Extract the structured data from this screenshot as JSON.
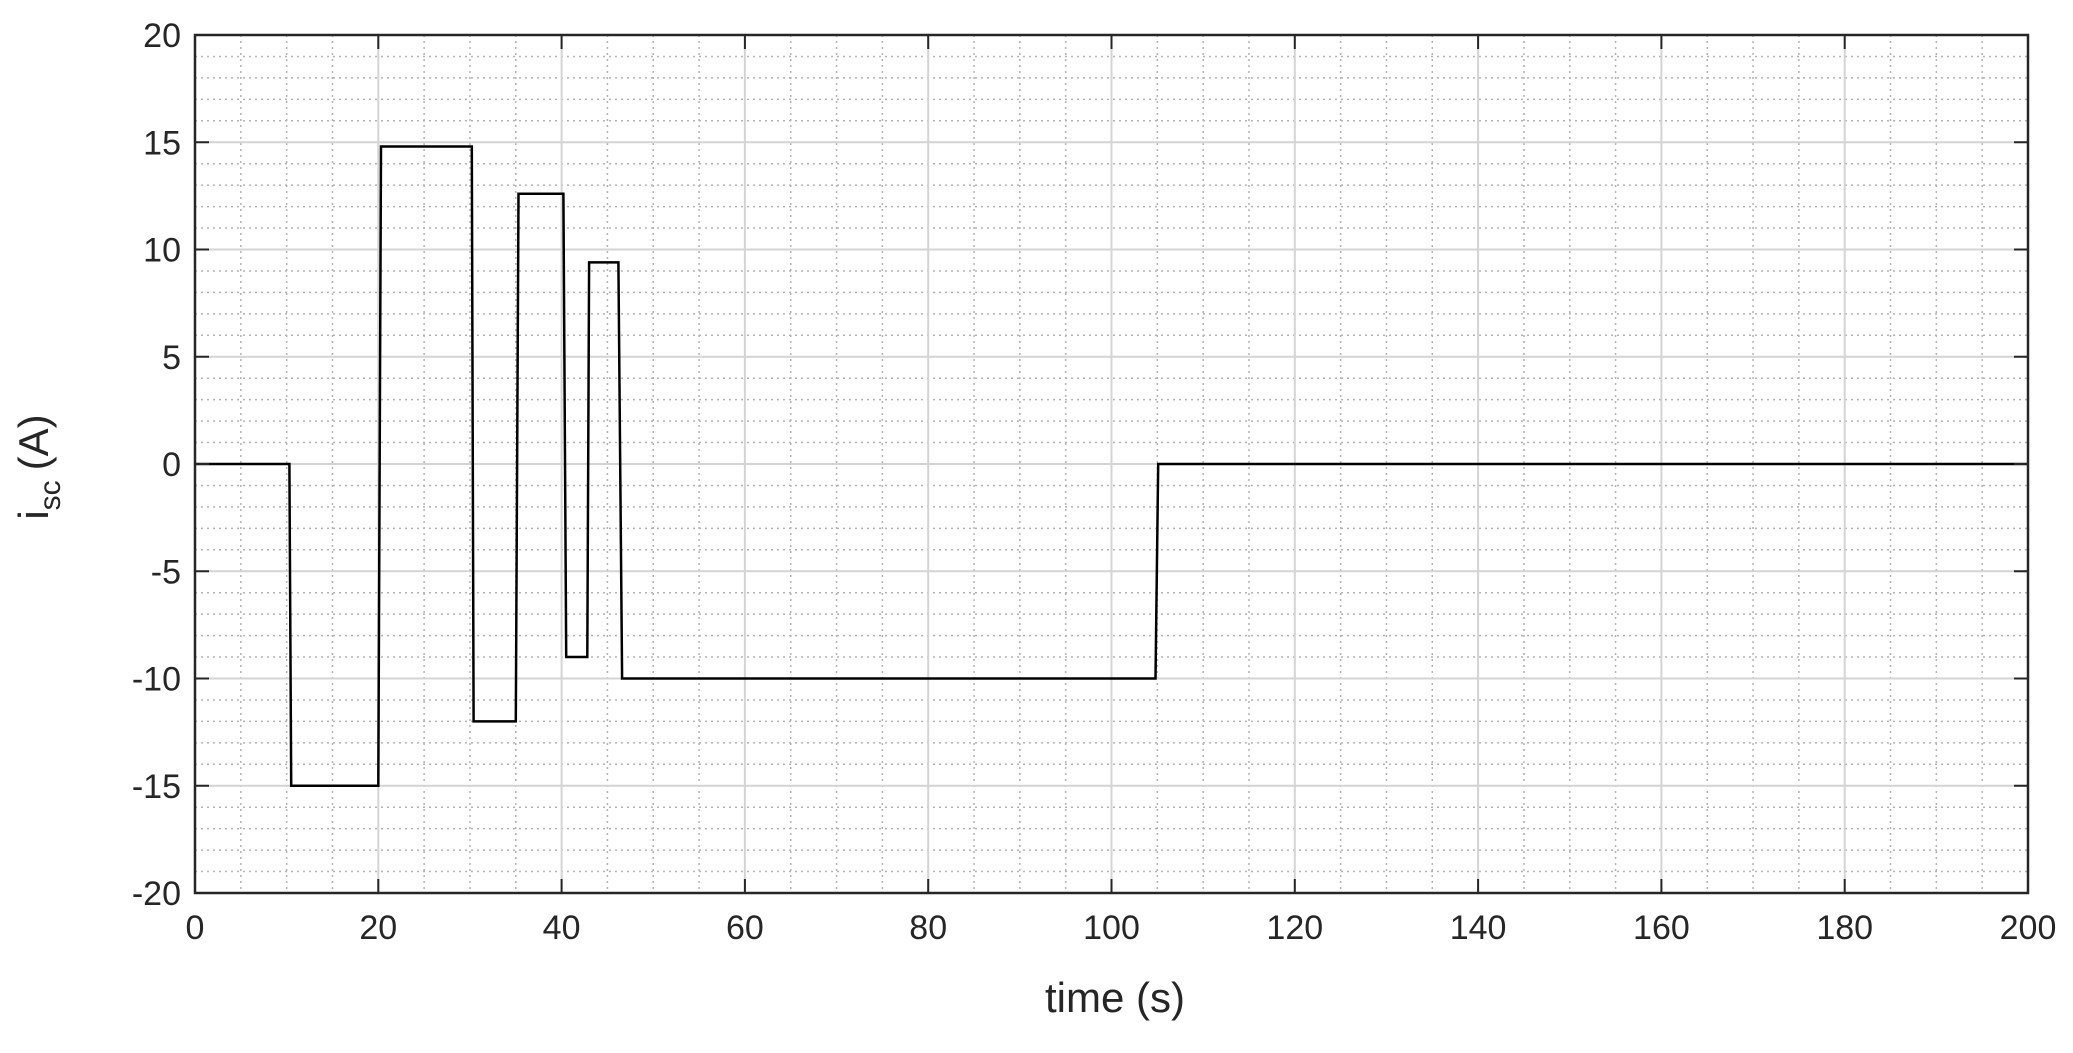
{
  "chart_data": {
    "type": "line",
    "title": "",
    "xlabel": "time (s)",
    "ylabel": {
      "main": "i",
      "subscript": "sc",
      "unit": "(A)"
    },
    "xlim": [
      0,
      200
    ],
    "ylim": [
      -20,
      20
    ],
    "x_ticks": [
      0,
      20,
      40,
      60,
      80,
      100,
      120,
      140,
      160,
      180,
      200
    ],
    "y_ticks": [
      -20,
      -15,
      -10,
      -5,
      0,
      5,
      10,
      15,
      20
    ],
    "x_minor_step": 5,
    "y_minor_step": 1,
    "grid": {
      "major": true,
      "minor": true,
      "minor_style": "dotted"
    },
    "legend": "none",
    "line_color": "#000000",
    "series": [
      {
        "x": [
          0,
          10.3,
          10.5,
          20.0,
          20.3,
          30.2,
          30.4,
          35.0,
          35.3,
          40.2,
          40.5,
          42.8,
          43.0,
          46.2,
          46.6,
          104.8,
          105.1,
          200
        ],
        "y": [
          0,
          0,
          -15,
          -15,
          14.8,
          14.8,
          -12,
          -12,
          12.6,
          12.6,
          -9,
          -9,
          9.4,
          9.4,
          -10,
          -10,
          0,
          0
        ]
      }
    ]
  }
}
